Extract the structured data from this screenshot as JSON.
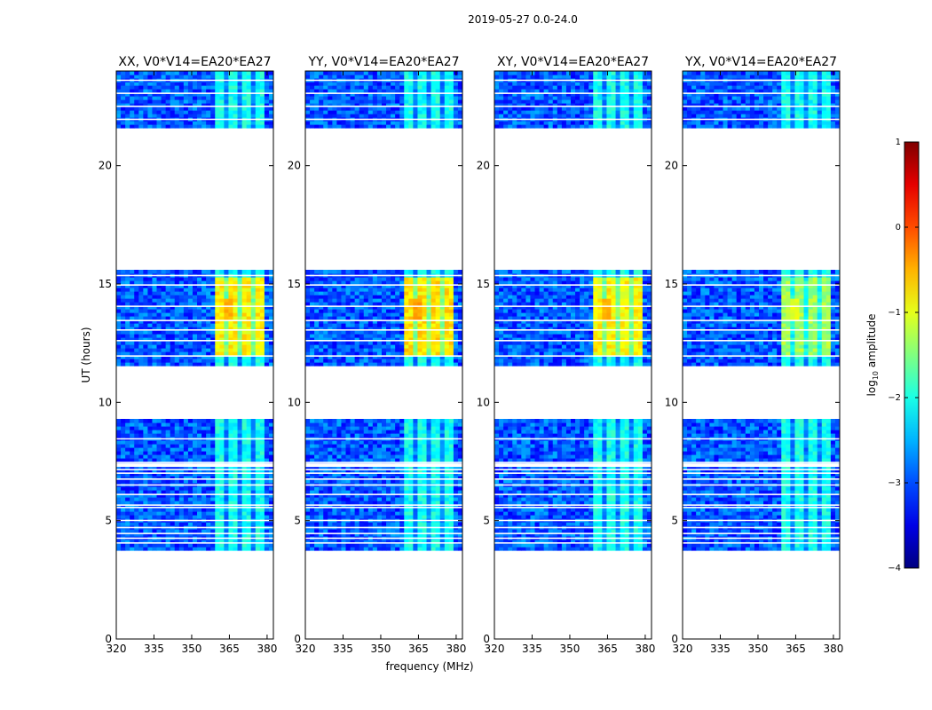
{
  "figure": {
    "suptitle": "2019-05-27 0.0-24.0"
  },
  "chart_data": {
    "type": "heatmap",
    "title": "2019-05-27 0.0-24.0",
    "xlabel": "frequency (MHz)",
    "ylabel": "UT (hours)",
    "xlim": [
      320,
      382.5
    ],
    "ylim": [
      0,
      24
    ],
    "xticks": [
      320,
      335,
      350,
      365,
      380
    ],
    "yticks": [
      0,
      5,
      10,
      15,
      20
    ],
    "colorbar": {
      "label": "log10 amplitude",
      "label_base": "log",
      "label_sub": "10",
      "label_rest": " amplitude",
      "range": [
        -4,
        1
      ],
      "ticks": [
        "1",
        "0",
        "−1",
        "−2",
        "−3",
        "−4"
      ],
      "tick_values": [
        1,
        0,
        -1,
        -2,
        -3,
        -4
      ],
      "colormap": "jet"
    },
    "data_blocks_ut": [
      [
        3.7,
        9.3
      ],
      [
        11.6,
        15.6
      ],
      [
        21.6,
        24.0
      ]
    ],
    "flagged_rows_ut": [
      4.05,
      4.25,
      4.45,
      4.7,
      5.0,
      5.55,
      5.65,
      6.1,
      6.5,
      6.75,
      7.0,
      7.15,
      7.35,
      7.45,
      8.45,
      11.95,
      12.6,
      13.05,
      13.45,
      14.05,
      14.95,
      15.35,
      21.95,
      22.5,
      23.05,
      23.6
    ],
    "rfi_band_mhz": [
      360,
      379
    ],
    "panels": [
      {
        "title": "XX, V0*V14=EA20*EA27",
        "baseline": "V0*V14=EA20*EA27",
        "polarization": "XX",
        "peak_log_amp": -0.6
      },
      {
        "title": "YY, V0*V14=EA20*EA27",
        "baseline": "V0*V14=EA20*EA27",
        "polarization": "YY",
        "peak_log_amp": -0.5
      },
      {
        "title": "XY, V0*V14=EA20*EA27",
        "baseline": "V0*V14=EA20*EA27",
        "polarization": "XY",
        "peak_log_amp": -0.6
      },
      {
        "title": "YX, V0*V14=EA20*EA27",
        "baseline": "V0*V14=EA20*EA27",
        "polarization": "YX",
        "peak_log_amp": -1.1
      }
    ]
  }
}
